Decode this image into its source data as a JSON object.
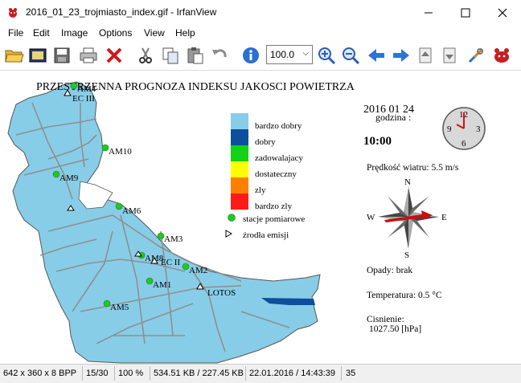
{
  "window": {
    "title": "2016_01_23_trojmiasto_index.gif - IrfanView"
  },
  "menu": [
    "File",
    "Edit",
    "Image",
    "Options",
    "View",
    "Help"
  ],
  "toolbar": {
    "zoom_value": "100.0",
    "icons": [
      "open-folder-icon",
      "slideshow-icon",
      "save-icon",
      "print-icon",
      "delete-icon",
      "cut-icon",
      "copy-icon",
      "paste-icon",
      "undo-icon",
      "info-icon",
      "zoom-in-icon",
      "zoom-out-icon",
      "previous-icon",
      "next-icon",
      "page-up-icon",
      "page-down-icon",
      "settings-icon",
      "irfanview-icon"
    ]
  },
  "map": {
    "title": "PRZESTRZENNA PROGNOZA INDEKSU JAKOSCI POWIETRZA",
    "date": "2016 01 24",
    "hour_label": "godzina :",
    "time": "10:00",
    "clock_numbers": [
      "12",
      "3",
      "6",
      "9"
    ],
    "wind": "Prędkość wiatru: 5.5 m/s",
    "compass": [
      "N",
      "E",
      "S",
      "W"
    ],
    "precip": "Opady: brak",
    "temperature": "Temperatura: 0.5 °C",
    "pressure_label": "Cisnienie:",
    "pressure_value": "1027.50 [hPa]",
    "legend": [
      {
        "label": "bardzo dobry",
        "color": "#87cde8"
      },
      {
        "label": "dobry",
        "color": "#0d4f9c"
      },
      {
        "label": "zadowalajacy",
        "color": "#14d214"
      },
      {
        "label": "dostateczny",
        "color": "#ffff00"
      },
      {
        "label": "zly",
        "color": "#ff7f00"
      },
      {
        "label": "bardzo zly",
        "color": "#ff1a1a"
      }
    ],
    "legend_stations": "stacje pomiarowe",
    "legend_sources": "źrodła emisji",
    "stations": [
      "AM4",
      "AM10",
      "AM9",
      "AM6",
      "AM3",
      "AM8",
      "AM2",
      "AM1",
      "AM5"
    ],
    "sources": [
      "EC III",
      "EC II",
      "LOTOS"
    ]
  },
  "status": {
    "dimensions": "642 x 360 x 8 BPP",
    "index": "15/30",
    "zoom": "100 %",
    "size": "534.51 KB / 227.45 KB",
    "datetime": "22.01.2016 / 14:43:39",
    "count": "35"
  }
}
